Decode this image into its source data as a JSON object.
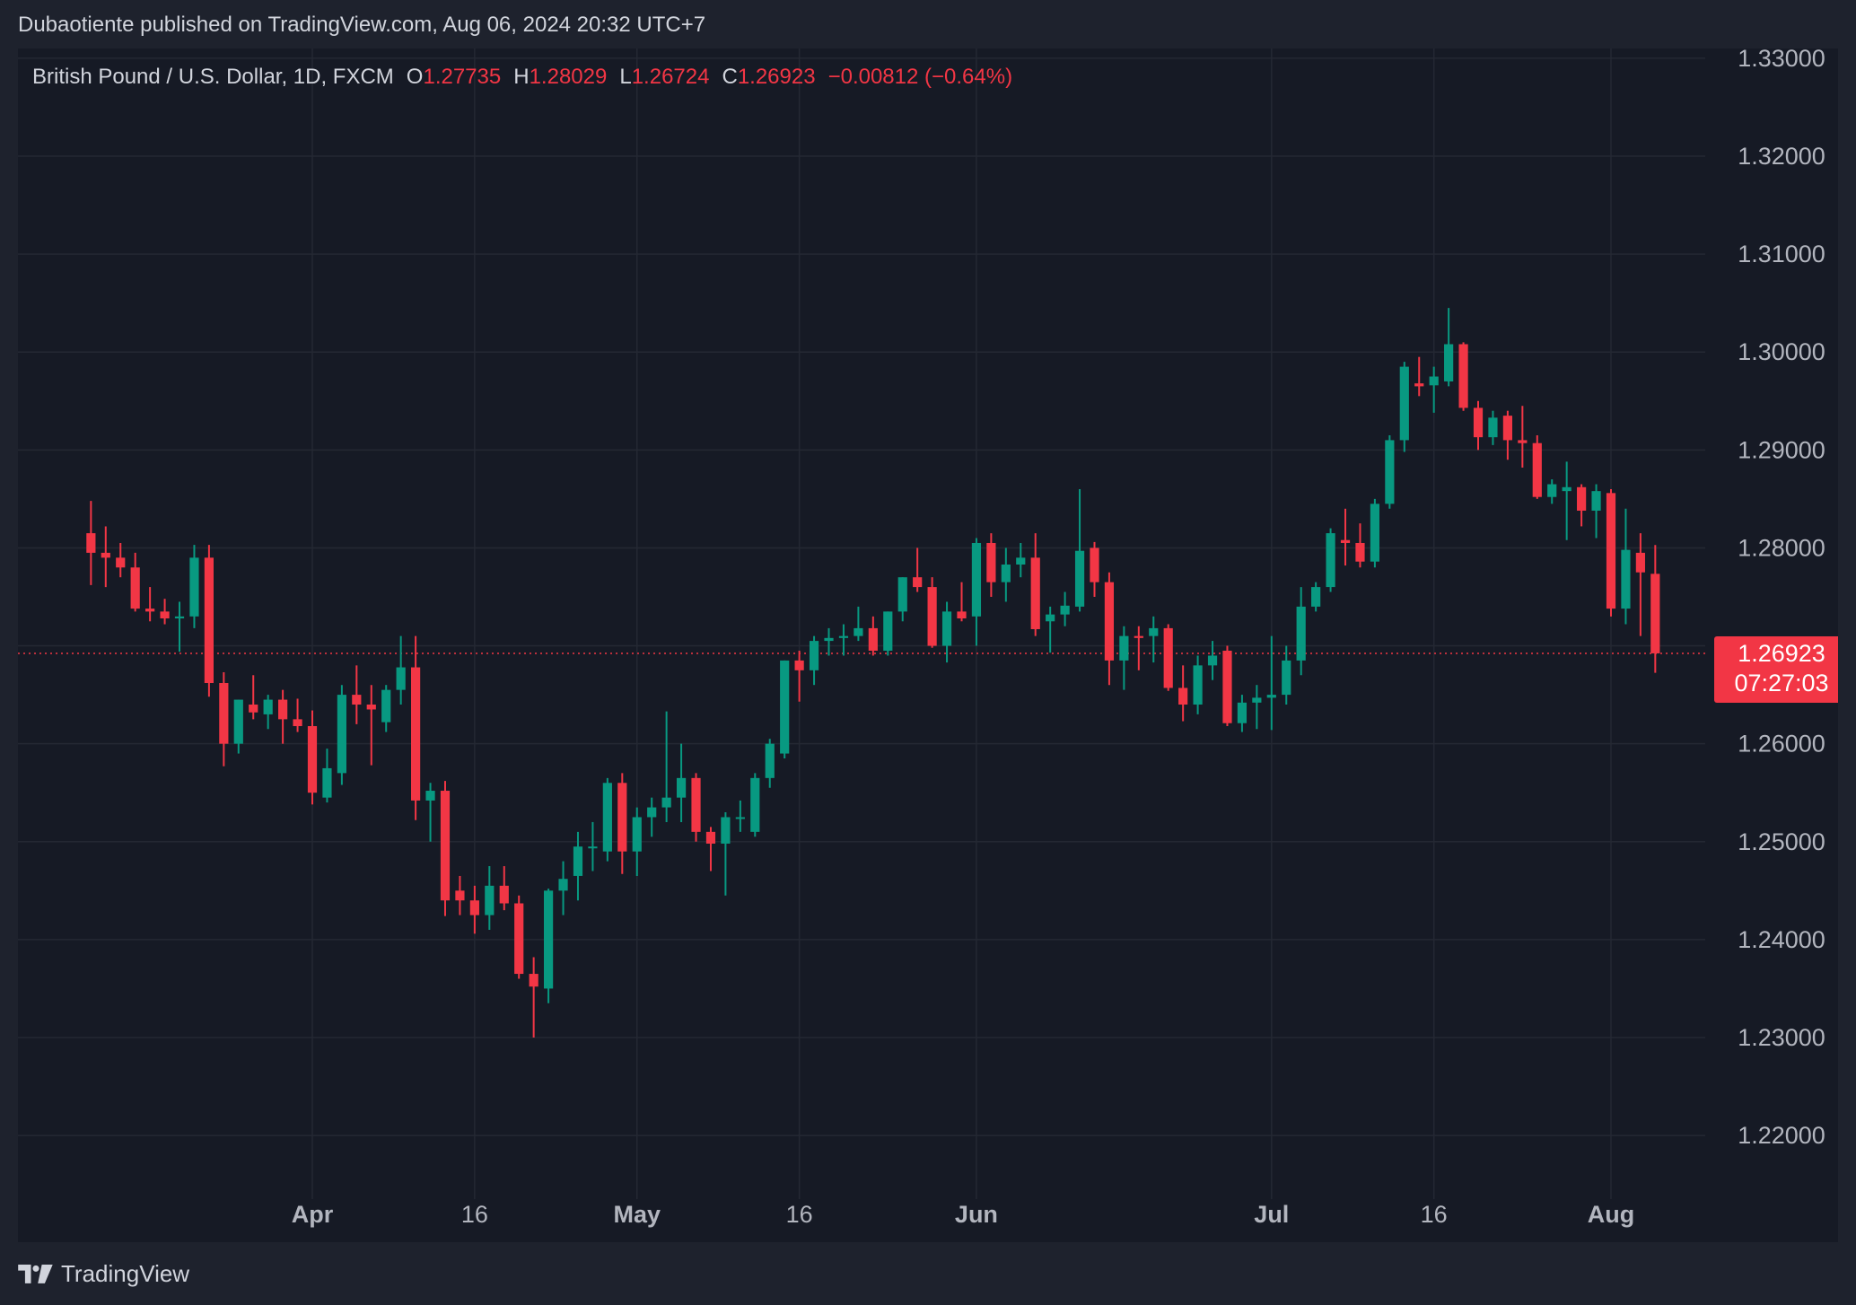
{
  "publisher_line": "Dubaotiente published on TradingView.com, Aug 06, 2024 20:32 UTC+7",
  "legend": {
    "symbol": "British Pound / U.S. Dollar, 1D, FXCM",
    "open_label": "O",
    "open": "1.27735",
    "high_label": "H",
    "high": "1.28029",
    "low_label": "L",
    "low": "1.26724",
    "close_label": "C",
    "close": "1.26923",
    "change": "−0.00812 (−0.64%)"
  },
  "price_tag": {
    "price": "1.26923",
    "countdown": "07:27:03"
  },
  "brand": {
    "name": "TradingView",
    "icon": "tradingview-logo-icon"
  },
  "colors": {
    "up": "#089981",
    "down": "#f23645",
    "background": "#161a25",
    "page": "#1e222d",
    "grid": "#242833",
    "text": "#d1d4dc",
    "axis_text": "#b2b5be"
  },
  "chart_data": {
    "type": "candlestick",
    "symbol": "GBPUSD",
    "timeframe": "1D",
    "y_ticks": [
      "1.33000",
      "1.32000",
      "1.31000",
      "1.30000",
      "1.29000",
      "1.28000",
      "1.27000",
      "1.26000",
      "1.25000",
      "1.24000",
      "1.23000",
      "1.22000"
    ],
    "x_ticks": [
      {
        "label": "Apr",
        "date": "2024-04-01",
        "bold": true
      },
      {
        "label": "16",
        "date": "2024-04-16",
        "bold": false
      },
      {
        "label": "May",
        "date": "2024-05-01",
        "bold": true
      },
      {
        "label": "16",
        "date": "2024-05-16",
        "bold": false
      },
      {
        "label": "Jun",
        "date": "2024-06-03",
        "bold": true
      },
      {
        "label": "Jul",
        "date": "2024-07-01",
        "bold": true
      },
      {
        "label": "16",
        "date": "2024-07-16",
        "bold": false
      },
      {
        "label": "Aug",
        "date": "2024-08-01",
        "bold": true
      }
    ],
    "ylim": [
      1.2135,
      1.331
    ],
    "last_price": 1.26923,
    "grid": true,
    "candles": [
      {
        "date": "2024-03-11",
        "open": 1.2815,
        "high": 1.2848,
        "low": 1.2762,
        "close": 1.2795
      },
      {
        "date": "2024-03-12",
        "open": 1.2795,
        "high": 1.2822,
        "low": 1.276,
        "close": 1.279
      },
      {
        "date": "2024-03-13",
        "open": 1.279,
        "high": 1.2805,
        "low": 1.277,
        "close": 1.278
      },
      {
        "date": "2024-03-14",
        "open": 1.278,
        "high": 1.2795,
        "low": 1.2735,
        "close": 1.2738
      },
      {
        "date": "2024-03-15",
        "open": 1.2738,
        "high": 1.276,
        "low": 1.2725,
        "close": 1.2735
      },
      {
        "date": "2024-03-18",
        "open": 1.2735,
        "high": 1.2748,
        "low": 1.2722,
        "close": 1.2728
      },
      {
        "date": "2024-03-19",
        "open": 1.2728,
        "high": 1.2745,
        "low": 1.2694,
        "close": 1.273
      },
      {
        "date": "2024-03-20",
        "open": 1.273,
        "high": 1.2803,
        "low": 1.2718,
        "close": 1.279
      },
      {
        "date": "2024-03-21",
        "open": 1.279,
        "high": 1.2803,
        "low": 1.2648,
        "close": 1.2662
      },
      {
        "date": "2024-03-22",
        "open": 1.2662,
        "high": 1.2673,
        "low": 1.2577,
        "close": 1.26
      },
      {
        "date": "2024-03-25",
        "open": 1.26,
        "high": 1.2645,
        "low": 1.259,
        "close": 1.2645
      },
      {
        "date": "2024-03-26",
        "open": 1.264,
        "high": 1.267,
        "low": 1.2625,
        "close": 1.2632
      },
      {
        "date": "2024-03-27",
        "open": 1.263,
        "high": 1.265,
        "low": 1.2615,
        "close": 1.2645
      },
      {
        "date": "2024-03-28",
        "open": 1.2645,
        "high": 1.2655,
        "low": 1.26,
        "close": 1.2625
      },
      {
        "date": "2024-03-29",
        "open": 1.2625,
        "high": 1.2646,
        "low": 1.2612,
        "close": 1.2618
      },
      {
        "date": "2024-04-01",
        "open": 1.2618,
        "high": 1.2634,
        "low": 1.2538,
        "close": 1.255
      },
      {
        "date": "2024-04-02",
        "open": 1.2545,
        "high": 1.2595,
        "low": 1.254,
        "close": 1.2575
      },
      {
        "date": "2024-04-03",
        "open": 1.257,
        "high": 1.266,
        "low": 1.2558,
        "close": 1.265
      },
      {
        "date": "2024-04-04",
        "open": 1.265,
        "high": 1.268,
        "low": 1.262,
        "close": 1.264
      },
      {
        "date": "2024-04-05",
        "open": 1.264,
        "high": 1.266,
        "low": 1.2578,
        "close": 1.2635
      },
      {
        "date": "2024-04-08",
        "open": 1.2622,
        "high": 1.266,
        "low": 1.2612,
        "close": 1.2655
      },
      {
        "date": "2024-04-09",
        "open": 1.2655,
        "high": 1.271,
        "low": 1.264,
        "close": 1.2678
      },
      {
        "date": "2024-04-10",
        "open": 1.2678,
        "high": 1.271,
        "low": 1.2522,
        "close": 1.2542
      },
      {
        "date": "2024-04-11",
        "open": 1.2542,
        "high": 1.256,
        "low": 1.25,
        "close": 1.2552
      },
      {
        "date": "2024-04-12",
        "open": 1.2552,
        "high": 1.2562,
        "low": 1.2424,
        "close": 1.244
      },
      {
        "date": "2024-04-15",
        "open": 1.245,
        "high": 1.2465,
        "low": 1.2425,
        "close": 1.244
      },
      {
        "date": "2024-04-16",
        "open": 1.244,
        "high": 1.2455,
        "low": 1.2406,
        "close": 1.2425
      },
      {
        "date": "2024-04-17",
        "open": 1.2425,
        "high": 1.2475,
        "low": 1.241,
        "close": 1.2455
      },
      {
        "date": "2024-04-18",
        "open": 1.2455,
        "high": 1.2475,
        "low": 1.243,
        "close": 1.2437
      },
      {
        "date": "2024-04-19",
        "open": 1.2437,
        "high": 1.2445,
        "low": 1.236,
        "close": 1.2365
      },
      {
        "date": "2024-04-22",
        "open": 1.2365,
        "high": 1.2382,
        "low": 1.23,
        "close": 1.2352
      },
      {
        "date": "2024-04-23",
        "open": 1.235,
        "high": 1.2452,
        "low": 1.2335,
        "close": 1.245
      },
      {
        "date": "2024-04-24",
        "open": 1.245,
        "high": 1.248,
        "low": 1.2425,
        "close": 1.2462
      },
      {
        "date": "2024-04-25",
        "open": 1.2465,
        "high": 1.251,
        "low": 1.244,
        "close": 1.2495
      },
      {
        "date": "2024-04-26",
        "open": 1.2495,
        "high": 1.252,
        "low": 1.247,
        "close": 1.2495
      },
      {
        "date": "2024-04-29",
        "open": 1.249,
        "high": 1.2565,
        "low": 1.248,
        "close": 1.256
      },
      {
        "date": "2024-04-30",
        "open": 1.256,
        "high": 1.257,
        "low": 1.2467,
        "close": 1.249
      },
      {
        "date": "2024-05-01",
        "open": 1.249,
        "high": 1.2535,
        "low": 1.2465,
        "close": 1.2525
      },
      {
        "date": "2024-05-02",
        "open": 1.2525,
        "high": 1.2545,
        "low": 1.2505,
        "close": 1.2535
      },
      {
        "date": "2024-05-03",
        "open": 1.2535,
        "high": 1.2633,
        "low": 1.252,
        "close": 1.2545
      },
      {
        "date": "2024-05-06",
        "open": 1.2545,
        "high": 1.26,
        "low": 1.252,
        "close": 1.2565
      },
      {
        "date": "2024-05-07",
        "open": 1.2565,
        "high": 1.257,
        "low": 1.25,
        "close": 1.251
      },
      {
        "date": "2024-05-08",
        "open": 1.251,
        "high": 1.2515,
        "low": 1.247,
        "close": 1.2498
      },
      {
        "date": "2024-05-09",
        "open": 1.2498,
        "high": 1.253,
        "low": 1.2445,
        "close": 1.2525
      },
      {
        "date": "2024-05-10",
        "open": 1.2525,
        "high": 1.2542,
        "low": 1.251,
        "close": 1.2525
      },
      {
        "date": "2024-05-13",
        "open": 1.251,
        "high": 1.257,
        "low": 1.2505,
        "close": 1.2565
      },
      {
        "date": "2024-05-14",
        "open": 1.2565,
        "high": 1.2605,
        "low": 1.2555,
        "close": 1.26
      },
      {
        "date": "2024-05-15",
        "open": 1.259,
        "high": 1.2685,
        "low": 1.2585,
        "close": 1.2685
      },
      {
        "date": "2024-05-16",
        "open": 1.2685,
        "high": 1.2695,
        "low": 1.2643,
        "close": 1.2675
      },
      {
        "date": "2024-05-17",
        "open": 1.2675,
        "high": 1.271,
        "low": 1.266,
        "close": 1.2705
      },
      {
        "date": "2024-05-20",
        "open": 1.2705,
        "high": 1.2718,
        "low": 1.269,
        "close": 1.2708
      },
      {
        "date": "2024-05-21",
        "open": 1.2708,
        "high": 1.2722,
        "low": 1.269,
        "close": 1.271
      },
      {
        "date": "2024-05-22",
        "open": 1.271,
        "high": 1.274,
        "low": 1.2705,
        "close": 1.2718
      },
      {
        "date": "2024-05-23",
        "open": 1.2718,
        "high": 1.273,
        "low": 1.269,
        "close": 1.2695
      },
      {
        "date": "2024-05-24",
        "open": 1.2695,
        "high": 1.2735,
        "low": 1.269,
        "close": 1.2735
      },
      {
        "date": "2024-05-27",
        "open": 1.2735,
        "high": 1.277,
        "low": 1.2725,
        "close": 1.277
      },
      {
        "date": "2024-05-28",
        "open": 1.277,
        "high": 1.28,
        "low": 1.2755,
        "close": 1.276
      },
      {
        "date": "2024-05-29",
        "open": 1.276,
        "high": 1.277,
        "low": 1.2698,
        "close": 1.27
      },
      {
        "date": "2024-05-30",
        "open": 1.27,
        "high": 1.2745,
        "low": 1.2683,
        "close": 1.2735
      },
      {
        "date": "2024-05-31",
        "open": 1.2735,
        "high": 1.2765,
        "low": 1.2725,
        "close": 1.2728
      },
      {
        "date": "2024-06-03",
        "open": 1.273,
        "high": 1.281,
        "low": 1.27,
        "close": 1.2805
      },
      {
        "date": "2024-06-04",
        "open": 1.2805,
        "high": 1.2815,
        "low": 1.275,
        "close": 1.2765
      },
      {
        "date": "2024-06-05",
        "open": 1.2765,
        "high": 1.28,
        "low": 1.2745,
        "close": 1.2783
      },
      {
        "date": "2024-06-06",
        "open": 1.2783,
        "high": 1.2805,
        "low": 1.277,
        "close": 1.279
      },
      {
        "date": "2024-06-07",
        "open": 1.279,
        "high": 1.2815,
        "low": 1.271,
        "close": 1.2717
      },
      {
        "date": "2024-06-10",
        "open": 1.2725,
        "high": 1.274,
        "low": 1.2693,
        "close": 1.2732
      },
      {
        "date": "2024-06-11",
        "open": 1.2732,
        "high": 1.2755,
        "low": 1.272,
        "close": 1.2741
      },
      {
        "date": "2024-06-12",
        "open": 1.274,
        "high": 1.286,
        "low": 1.2735,
        "close": 1.2797
      },
      {
        "date": "2024-06-13",
        "open": 1.28,
        "high": 1.2806,
        "low": 1.275,
        "close": 1.2765
      },
      {
        "date": "2024-06-14",
        "open": 1.2765,
        "high": 1.2775,
        "low": 1.266,
        "close": 1.2685
      },
      {
        "date": "2024-06-17",
        "open": 1.2685,
        "high": 1.272,
        "low": 1.2655,
        "close": 1.271
      },
      {
        "date": "2024-06-18",
        "open": 1.271,
        "high": 1.272,
        "low": 1.2675,
        "close": 1.2708
      },
      {
        "date": "2024-06-19",
        "open": 1.271,
        "high": 1.273,
        "low": 1.2683,
        "close": 1.2718
      },
      {
        "date": "2024-06-20",
        "open": 1.2718,
        "high": 1.2722,
        "low": 1.2654,
        "close": 1.2657
      },
      {
        "date": "2024-06-21",
        "open": 1.2657,
        "high": 1.268,
        "low": 1.2623,
        "close": 1.264
      },
      {
        "date": "2024-06-24",
        "open": 1.264,
        "high": 1.269,
        "low": 1.263,
        "close": 1.268
      },
      {
        "date": "2024-06-25",
        "open": 1.268,
        "high": 1.2705,
        "low": 1.2665,
        "close": 1.269
      },
      {
        "date": "2024-06-26",
        "open": 1.2695,
        "high": 1.27,
        "low": 1.2618,
        "close": 1.2621
      },
      {
        "date": "2024-06-27",
        "open": 1.2621,
        "high": 1.265,
        "low": 1.2612,
        "close": 1.2642
      },
      {
        "date": "2024-06-28",
        "open": 1.2642,
        "high": 1.266,
        "low": 1.2615,
        "close": 1.2647
      },
      {
        "date": "2024-07-01",
        "open": 1.2647,
        "high": 1.271,
        "low": 1.2614,
        "close": 1.265
      },
      {
        "date": "2024-07-02",
        "open": 1.265,
        "high": 1.27,
        "low": 1.264,
        "close": 1.2685
      },
      {
        "date": "2024-07-03",
        "open": 1.2685,
        "high": 1.276,
        "low": 1.267,
        "close": 1.274
      },
      {
        "date": "2024-07-04",
        "open": 1.274,
        "high": 1.2765,
        "low": 1.2735,
        "close": 1.276
      },
      {
        "date": "2024-07-05",
        "open": 1.276,
        "high": 1.282,
        "low": 1.2755,
        "close": 1.2815
      },
      {
        "date": "2024-07-08",
        "open": 1.2808,
        "high": 1.284,
        "low": 1.2782,
        "close": 1.2805
      },
      {
        "date": "2024-07-09",
        "open": 1.2805,
        "high": 1.2825,
        "low": 1.278,
        "close": 1.2786
      },
      {
        "date": "2024-07-10",
        "open": 1.2786,
        "high": 1.285,
        "low": 1.278,
        "close": 1.2845
      },
      {
        "date": "2024-07-11",
        "open": 1.2845,
        "high": 1.2915,
        "low": 1.284,
        "close": 1.291
      },
      {
        "date": "2024-07-12",
        "open": 1.291,
        "high": 1.299,
        "low": 1.2898,
        "close": 1.2985
      },
      {
        "date": "2024-07-15",
        "open": 1.2968,
        "high": 1.2995,
        "low": 1.2955,
        "close": 1.2965
      },
      {
        "date": "2024-07-16",
        "open": 1.2966,
        "high": 1.2985,
        "low": 1.2938,
        "close": 1.2975
      },
      {
        "date": "2024-07-17",
        "open": 1.297,
        "high": 1.3045,
        "low": 1.2965,
        "close": 1.3008
      },
      {
        "date": "2024-07-18",
        "open": 1.3008,
        "high": 1.301,
        "low": 1.294,
        "close": 1.2943
      },
      {
        "date": "2024-07-19",
        "open": 1.2943,
        "high": 1.295,
        "low": 1.29,
        "close": 1.2913
      },
      {
        "date": "2024-07-22",
        "open": 1.2913,
        "high": 1.294,
        "low": 1.2905,
        "close": 1.2933
      },
      {
        "date": "2024-07-23",
        "open": 1.2935,
        "high": 1.294,
        "low": 1.289,
        "close": 1.291
      },
      {
        "date": "2024-07-24",
        "open": 1.291,
        "high": 1.2945,
        "low": 1.2882,
        "close": 1.2907
      },
      {
        "date": "2024-07-25",
        "open": 1.2907,
        "high": 1.2915,
        "low": 1.285,
        "close": 1.2852
      },
      {
        "date": "2024-07-26",
        "open": 1.2852,
        "high": 1.287,
        "low": 1.2845,
        "close": 1.2865
      },
      {
        "date": "2024-07-29",
        "open": 1.2858,
        "high": 1.2888,
        "low": 1.2808,
        "close": 1.2862
      },
      {
        "date": "2024-07-30",
        "open": 1.2862,
        "high": 1.2865,
        "low": 1.2822,
        "close": 1.2838
      },
      {
        "date": "2024-07-31",
        "open": 1.2838,
        "high": 1.2865,
        "low": 1.281,
        "close": 1.2858
      },
      {
        "date": "2024-08-01",
        "open": 1.2856,
        "high": 1.286,
        "low": 1.273,
        "close": 1.2738
      },
      {
        "date": "2024-08-02",
        "open": 1.2738,
        "high": 1.284,
        "low": 1.2722,
        "close": 1.2798
      },
      {
        "date": "2024-08-05",
        "open": 1.2795,
        "high": 1.2815,
        "low": 1.271,
        "close": 1.2775
      },
      {
        "date": "2024-08-06",
        "open": 1.27735,
        "high": 1.28029,
        "low": 1.26724,
        "close": 1.26923
      }
    ]
  }
}
